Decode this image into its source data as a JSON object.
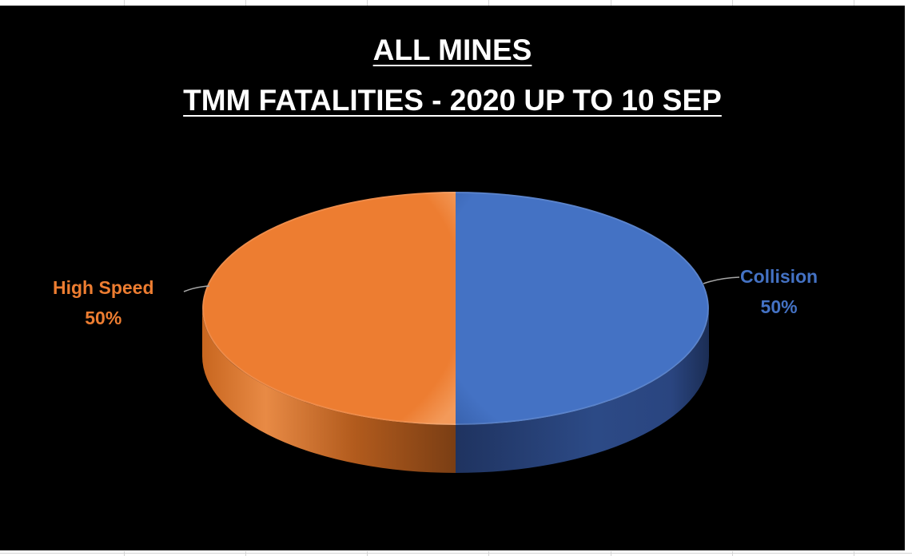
{
  "chart_data": {
    "type": "pie",
    "title": "ALL MINES",
    "subtitle": "TMM FATALITIES - 2020 UP TO 10 SEP",
    "categories": [
      "Collision",
      "High Speed"
    ],
    "values": [
      50,
      50
    ],
    "labels": [
      {
        "name": "Collision",
        "percent": "50%"
      },
      {
        "name": "High Speed",
        "percent": "50%"
      }
    ],
    "colors": {
      "collision": "#4472c4",
      "high_speed": "#ed7d31"
    },
    "style": "3d",
    "legend": "none",
    "background": "#000000"
  }
}
